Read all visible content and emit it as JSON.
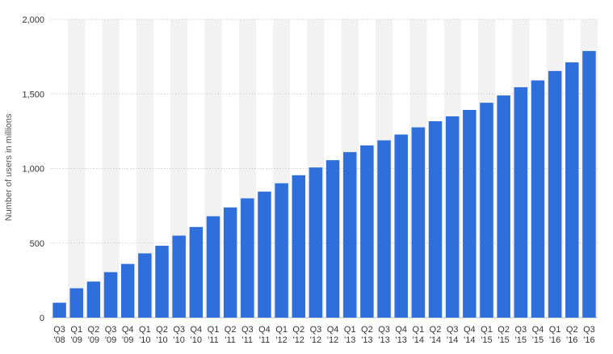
{
  "chart_data": {
    "type": "bar",
    "title": "",
    "xlabel": "",
    "ylabel": "Number of users in millions",
    "ylim": [
      0,
      2000
    ],
    "yticks": [
      0,
      500,
      1000,
      1500,
      2000
    ],
    "ytick_labels": [
      "0",
      "500",
      "1,000",
      "1,500",
      "2,000"
    ],
    "grid": true,
    "legend": "none",
    "bar_color": "#2f6fdc",
    "band_color": "#f2f2f2",
    "categories": [
      [
        "Q3",
        "'08"
      ],
      [
        "Q1",
        "'09"
      ],
      [
        "Q2",
        "'09"
      ],
      [
        "Q3",
        "'09"
      ],
      [
        "Q4",
        "'09"
      ],
      [
        "Q1",
        "'10"
      ],
      [
        "Q2",
        "'10"
      ],
      [
        "Q3",
        "'10"
      ],
      [
        "Q4",
        "'10"
      ],
      [
        "Q1",
        "'11"
      ],
      [
        "Q2",
        "'11"
      ],
      [
        "Q3",
        "'11"
      ],
      [
        "Q4",
        "'11"
      ],
      [
        "Q1",
        "'12"
      ],
      [
        "Q2",
        "'12"
      ],
      [
        "Q3",
        "'12"
      ],
      [
        "Q4",
        "'12"
      ],
      [
        "Q1",
        "'13"
      ],
      [
        "Q2",
        "'13"
      ],
      [
        "Q3",
        "'13"
      ],
      [
        "Q4",
        "'13"
      ],
      [
        "Q1",
        "'14"
      ],
      [
        "Q2",
        "'14"
      ],
      [
        "Q3",
        "'14"
      ],
      [
        "Q4",
        "'14"
      ],
      [
        "Q1",
        "'15"
      ],
      [
        "Q2",
        "'15"
      ],
      [
        "Q3",
        "'15"
      ],
      [
        "Q4",
        "'15"
      ],
      [
        "Q1",
        "'16"
      ],
      [
        "Q2",
        "'16"
      ],
      [
        "Q3",
        "'16"
      ]
    ],
    "values": [
      100,
      197,
      242,
      305,
      360,
      431,
      482,
      550,
      608,
      680,
      739,
      800,
      845,
      901,
      955,
      1007,
      1056,
      1110,
      1155,
      1189,
      1228,
      1276,
      1317,
      1350,
      1393,
      1441,
      1490,
      1545,
      1591,
      1654,
      1712,
      1788
    ]
  }
}
